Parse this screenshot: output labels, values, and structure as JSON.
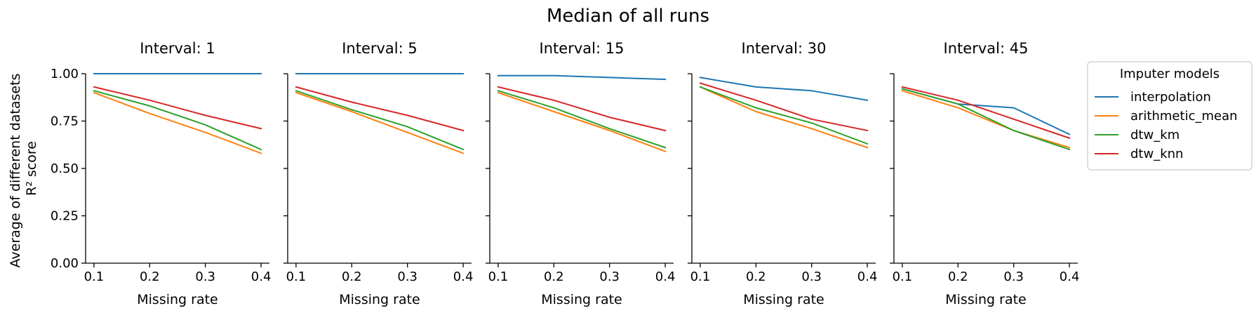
{
  "chart_data": {
    "type": "line",
    "title": "Median of all runs",
    "ylabel_lines": [
      "Average of different datasets",
      "R² score"
    ],
    "xlabel": "Missing rate",
    "x": [
      0.1,
      0.2,
      0.3,
      0.4
    ],
    "xlim": [
      0.085,
      0.415
    ],
    "ylim": [
      0,
      1
    ],
    "xticks": [
      0.1,
      0.2,
      0.3,
      0.4
    ],
    "xtick_labels": [
      "0.1",
      "0.2",
      "0.3",
      "0.4"
    ],
    "yticks": [
      0,
      0.25,
      0.5,
      0.75,
      1.0
    ],
    "ytick_labels": [
      "0.00",
      "0.25",
      "0.50",
      "0.75",
      "1.00"
    ],
    "grid": false,
    "legend": {
      "title": "Imputer models",
      "placement": "outside-right",
      "entries": [
        "interpolation",
        "arithmetic_mean",
        "dtw_km",
        "dtw_knn"
      ]
    },
    "colors": {
      "interpolation": "#1f77b4",
      "arithmetic_mean": "#ff7f0e",
      "dtw_km": "#2ca02c",
      "dtw_knn": "#d62728"
    },
    "panels": [
      {
        "title": "Interval: 1",
        "series": [
          {
            "name": "interpolation",
            "values": [
              1.0,
              1.0,
              1.0,
              1.0
            ]
          },
          {
            "name": "arithmetic_mean",
            "values": [
              0.9,
              0.79,
              0.69,
              0.58
            ]
          },
          {
            "name": "dtw_km",
            "values": [
              0.91,
              0.83,
              0.73,
              0.6
            ]
          },
          {
            "name": "dtw_knn",
            "values": [
              0.93,
              0.86,
              0.78,
              0.71
            ]
          }
        ]
      },
      {
        "title": "Interval: 5",
        "series": [
          {
            "name": "interpolation",
            "values": [
              1.0,
              1.0,
              1.0,
              1.0
            ]
          },
          {
            "name": "arithmetic_mean",
            "values": [
              0.9,
              0.8,
              0.69,
              0.58
            ]
          },
          {
            "name": "dtw_km",
            "values": [
              0.91,
              0.81,
              0.72,
              0.6
            ]
          },
          {
            "name": "dtw_knn",
            "values": [
              0.93,
              0.85,
              0.78,
              0.7
            ]
          }
        ]
      },
      {
        "title": "Interval: 15",
        "series": [
          {
            "name": "interpolation",
            "values": [
              0.99,
              0.99,
              0.98,
              0.97
            ]
          },
          {
            "name": "arithmetic_mean",
            "values": [
              0.9,
              0.8,
              0.7,
              0.59
            ]
          },
          {
            "name": "dtw_km",
            "values": [
              0.91,
              0.82,
              0.71,
              0.61
            ]
          },
          {
            "name": "dtw_knn",
            "values": [
              0.93,
              0.86,
              0.77,
              0.7
            ]
          }
        ]
      },
      {
        "title": "Interval: 30",
        "series": [
          {
            "name": "interpolation",
            "values": [
              0.98,
              0.93,
              0.91,
              0.86
            ]
          },
          {
            "name": "arithmetic_mean",
            "values": [
              0.93,
              0.8,
              0.71,
              0.61
            ]
          },
          {
            "name": "dtw_km",
            "values": [
              0.93,
              0.82,
              0.74,
              0.63
            ]
          },
          {
            "name": "dtw_knn",
            "values": [
              0.95,
              0.86,
              0.76,
              0.7
            ]
          }
        ]
      },
      {
        "title": "Interval: 45",
        "series": [
          {
            "name": "interpolation",
            "values": [
              0.92,
              0.84,
              0.82,
              0.68
            ]
          },
          {
            "name": "arithmetic_mean",
            "values": [
              0.91,
              0.82,
              0.7,
              0.61
            ]
          },
          {
            "name": "dtw_km",
            "values": [
              0.92,
              0.84,
              0.7,
              0.6
            ]
          },
          {
            "name": "dtw_knn",
            "values": [
              0.93,
              0.86,
              0.76,
              0.66
            ]
          }
        ]
      }
    ]
  }
}
